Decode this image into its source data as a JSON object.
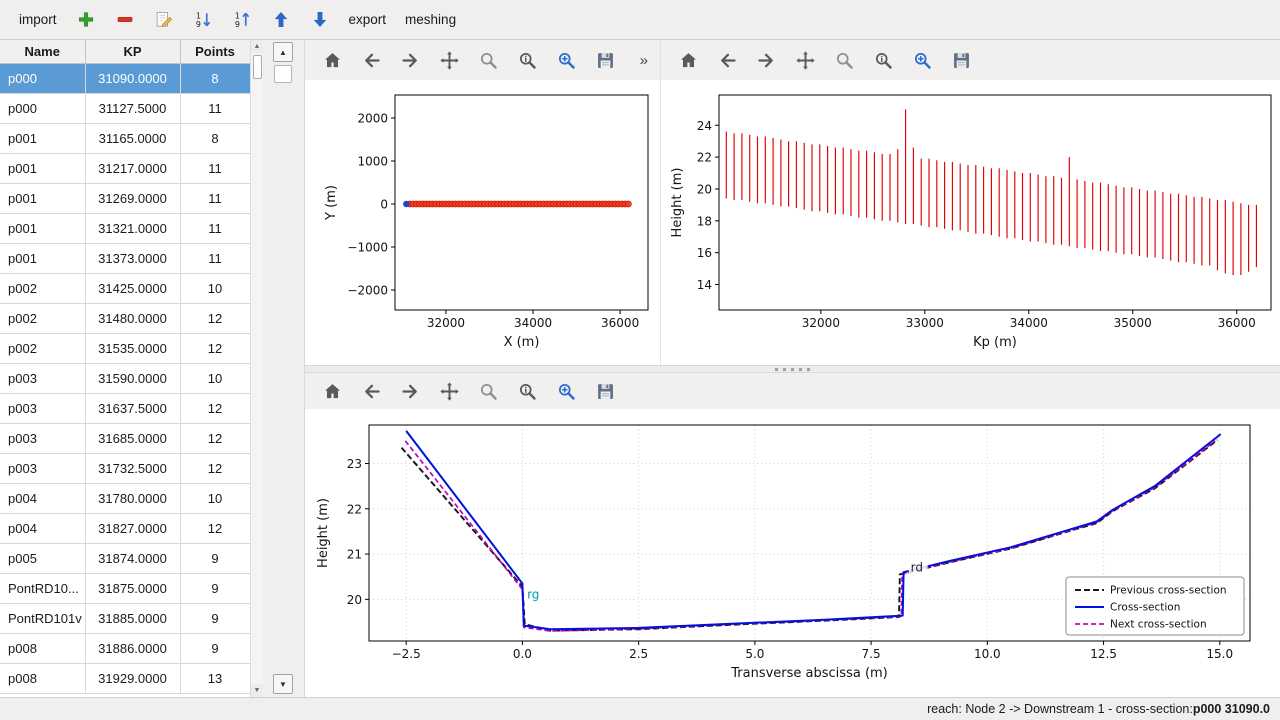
{
  "app_toolbar": {
    "import_label": "import",
    "export_label": "export",
    "meshing_label": "meshing",
    "icons": [
      "add",
      "remove",
      "edit",
      "sort-descending",
      "sort-ascending",
      "move-up",
      "move-down"
    ]
  },
  "plot_toolbar": {
    "icons": [
      "home",
      "back",
      "forward",
      "pan",
      "zoom",
      "zoom-info",
      "zoom-in",
      "save"
    ],
    "overflow_label": "»"
  },
  "table": {
    "columns": [
      "Name",
      "KP",
      "Points"
    ],
    "selected_index": 0,
    "selected_color": "#5b9bd5",
    "rows": [
      [
        "p000",
        "31090.0000",
        "8"
      ],
      [
        "p000",
        "31127.5000",
        "11"
      ],
      [
        "p001",
        "31165.0000",
        "8"
      ],
      [
        "p001",
        "31217.0000",
        "11"
      ],
      [
        "p001",
        "31269.0000",
        "11"
      ],
      [
        "p001",
        "31321.0000",
        "11"
      ],
      [
        "p001",
        "31373.0000",
        "11"
      ],
      [
        "p002",
        "31425.0000",
        "10"
      ],
      [
        "p002",
        "31480.0000",
        "12"
      ],
      [
        "p002",
        "31535.0000",
        "12"
      ],
      [
        "p003",
        "31590.0000",
        "10"
      ],
      [
        "p003",
        "31637.5000",
        "12"
      ],
      [
        "p003",
        "31685.0000",
        "12"
      ],
      [
        "p003",
        "31732.5000",
        "12"
      ],
      [
        "p004",
        "31780.0000",
        "10"
      ],
      [
        "p004",
        "31827.0000",
        "12"
      ],
      [
        "p005",
        "31874.0000",
        "9"
      ],
      [
        "PontRD10...",
        "31875.0000",
        "9"
      ],
      [
        "PontRD101v",
        "31885.0000",
        "9"
      ],
      [
        "p008",
        "31886.0000",
        "9"
      ],
      [
        "p008",
        "31929.0000",
        "13"
      ]
    ]
  },
  "status_bar": {
    "text": "reach: Node 2 -> Downstream 1 - cross-section: ",
    "bold_text": "p000 31090.0"
  },
  "chart_data": [
    {
      "type": "scatter",
      "title": "",
      "xlabel": "X (m)",
      "ylabel": "Y (m)",
      "xlim": [
        30830,
        36640
      ],
      "ylim": [
        -2465,
        2535
      ],
      "xticks": [
        32000,
        34000,
        36000
      ],
      "xtick_labels": [
        "32000",
        "34000",
        "36000"
      ],
      "yticks": [
        2000,
        1000,
        0,
        -1000,
        -2000
      ],
      "ytick_labels": [
        "2000",
        "1000",
        "0",
        "−1000",
        "−2000"
      ],
      "marker_color": "#f03a20",
      "marker_edge": "#c21807",
      "points_y": 0,
      "x_from": "sections",
      "selected": {
        "x": 31090,
        "y": 0,
        "color": "#2244cc"
      }
    },
    {
      "type": "segments",
      "title": "",
      "xlabel": "Kp (m)",
      "ylabel": "Height (m)",
      "xlim": [
        31020,
        36330
      ],
      "ylim": [
        12.4,
        25.9
      ],
      "xticks": [
        32000,
        33000,
        34000,
        35000,
        36000
      ],
      "xtick_labels": [
        "32000",
        "33000",
        "34000",
        "35000",
        "36000"
      ],
      "yticks": [
        14,
        16,
        18,
        20,
        22,
        24
      ],
      "ytick_labels": [
        "14",
        "16",
        "18",
        "20",
        "22",
        "24"
      ],
      "color": "#e00000",
      "sections": [
        [
          31090,
          19.4,
          23.6
        ],
        [
          31165,
          19.3,
          23.5
        ],
        [
          31240,
          19.3,
          23.5
        ],
        [
          31315,
          19.2,
          23.4
        ],
        [
          31390,
          19.1,
          23.3
        ],
        [
          31465,
          19.1,
          23.3
        ],
        [
          31540,
          19.0,
          23.2
        ],
        [
          31615,
          18.9,
          23.1
        ],
        [
          31690,
          18.9,
          23.0
        ],
        [
          31765,
          18.8,
          23.0
        ],
        [
          31840,
          18.7,
          22.9
        ],
        [
          31915,
          18.6,
          22.8
        ],
        [
          31990,
          18.6,
          22.8
        ],
        [
          32065,
          18.5,
          22.7
        ],
        [
          32140,
          18.4,
          22.6
        ],
        [
          32215,
          18.4,
          22.6
        ],
        [
          32290,
          18.3,
          22.5
        ],
        [
          32365,
          18.2,
          22.4
        ],
        [
          32440,
          18.2,
          22.4
        ],
        [
          32515,
          18.1,
          22.3
        ],
        [
          32590,
          18.0,
          22.2
        ],
        [
          32665,
          18.0,
          22.2
        ],
        [
          32740,
          17.9,
          22.5
        ],
        [
          32815,
          17.8,
          25.0
        ],
        [
          32890,
          17.8,
          22.6
        ],
        [
          32965,
          17.7,
          21.9
        ],
        [
          33040,
          17.6,
          21.9
        ],
        [
          33115,
          17.6,
          21.8
        ],
        [
          33190,
          17.5,
          21.7
        ],
        [
          33265,
          17.4,
          21.7
        ],
        [
          33340,
          17.4,
          21.6
        ],
        [
          33415,
          17.3,
          21.5
        ],
        [
          33490,
          17.2,
          21.5
        ],
        [
          33565,
          17.2,
          21.4
        ],
        [
          33640,
          17.1,
          21.3
        ],
        [
          33715,
          17.0,
          21.3
        ],
        [
          33790,
          16.9,
          21.2
        ],
        [
          33865,
          16.9,
          21.1
        ],
        [
          33940,
          16.8,
          21.0
        ],
        [
          34015,
          16.7,
          21.0
        ],
        [
          34090,
          16.7,
          20.9
        ],
        [
          34165,
          16.6,
          20.8
        ],
        [
          34240,
          16.5,
          20.8
        ],
        [
          34315,
          16.5,
          20.7
        ],
        [
          34390,
          16.4,
          22.0
        ],
        [
          34465,
          16.3,
          20.6
        ],
        [
          34540,
          16.3,
          20.5
        ],
        [
          34615,
          16.2,
          20.4
        ],
        [
          34690,
          16.1,
          20.4
        ],
        [
          34765,
          16.1,
          20.3
        ],
        [
          34840,
          16.0,
          20.2
        ],
        [
          34915,
          15.9,
          20.1
        ],
        [
          34990,
          15.9,
          20.1
        ],
        [
          35065,
          15.8,
          20.0
        ],
        [
          35140,
          15.7,
          19.9
        ],
        [
          35215,
          15.7,
          19.9
        ],
        [
          35290,
          15.6,
          19.8
        ],
        [
          35365,
          15.5,
          19.7
        ],
        [
          35440,
          15.4,
          19.7
        ],
        [
          35515,
          15.4,
          19.6
        ],
        [
          35590,
          15.3,
          19.5
        ],
        [
          35665,
          15.2,
          19.5
        ],
        [
          35740,
          15.2,
          19.4
        ],
        [
          35815,
          14.9,
          19.3
        ],
        [
          35890,
          14.7,
          19.3
        ],
        [
          35965,
          14.6,
          19.2
        ],
        [
          36040,
          14.6,
          19.1
        ],
        [
          36115,
          14.8,
          19.0
        ],
        [
          36190,
          15.1,
          19.0
        ]
      ]
    },
    {
      "type": "line",
      "title": "",
      "xlabel": "Transverse abscissa (m)",
      "ylabel": "Height (m)",
      "xlim": [
        -3.3,
        15.65
      ],
      "ylim": [
        19.08,
        23.85
      ],
      "xticks": [
        -2.5,
        0,
        2.5,
        5,
        7.5,
        10,
        12.5,
        15
      ],
      "xtick_labels": [
        "−2.5",
        "0.0",
        "2.5",
        "5.0",
        "7.5",
        "10.0",
        "12.5",
        "15.0"
      ],
      "yticks": [
        20,
        21,
        22,
        23
      ],
      "ytick_labels": [
        "20",
        "21",
        "22",
        "23"
      ],
      "grid": true,
      "legend_position": "lower right",
      "series": [
        {
          "name": "Previous cross-section",
          "color": "#1a1a1a",
          "dash": "6,3",
          "width": 2,
          "points": [
            [
              -2.6,
              23.35
            ],
            [
              0.0,
              20.28
            ],
            [
              0.05,
              19.45
            ],
            [
              0.6,
              19.31
            ],
            [
              2.5,
              19.34
            ],
            [
              4.5,
              19.44
            ],
            [
              6.5,
              19.53
            ],
            [
              8.1,
              19.61
            ],
            [
              8.12,
              20.55
            ],
            [
              9.2,
              20.82
            ],
            [
              10.5,
              21.12
            ],
            [
              11.8,
              21.52
            ],
            [
              12.35,
              21.68
            ],
            [
              12.7,
              21.95
            ],
            [
              13.6,
              22.45
            ],
            [
              14.95,
              23.52
            ]
          ]
        },
        {
          "name": "Cross-section",
          "color": "#0010dd",
          "dash": "",
          "width": 2,
          "points": [
            [
              -2.5,
              23.72
            ],
            [
              0.0,
              20.35
            ],
            [
              0.03,
              19.42
            ],
            [
              0.6,
              19.34
            ],
            [
              2.5,
              19.37
            ],
            [
              4.5,
              19.46
            ],
            [
              6.5,
              19.55
            ],
            [
              8.18,
              19.64
            ],
            [
              8.2,
              20.6
            ],
            [
              9.2,
              20.85
            ],
            [
              10.5,
              21.15
            ],
            [
              11.8,
              21.55
            ],
            [
              12.35,
              21.72
            ],
            [
              12.7,
              21.98
            ],
            [
              13.6,
              22.5
            ],
            [
              15.02,
              23.65
            ]
          ]
        },
        {
          "name": "Next cross-section",
          "color": "#c400c4",
          "dash": "5,3",
          "width": 1.7,
          "points": [
            [
              -2.52,
              23.5
            ],
            [
              0.0,
              20.22
            ],
            [
              0.03,
              19.38
            ],
            [
              0.6,
              19.3
            ],
            [
              2.5,
              19.35
            ],
            [
              4.5,
              19.45
            ],
            [
              6.5,
              19.54
            ],
            [
              8.15,
              19.62
            ],
            [
              8.17,
              20.57
            ],
            [
              9.2,
              20.83
            ],
            [
              10.5,
              21.13
            ],
            [
              11.8,
              21.53
            ],
            [
              12.35,
              21.7
            ],
            [
              12.7,
              21.96
            ],
            [
              13.6,
              22.47
            ],
            [
              14.9,
              23.5
            ]
          ]
        }
      ],
      "annotations": [
        {
          "text": "rg",
          "x": 0.1,
          "y": 20.02,
          "color": "#00a2a8"
        },
        {
          "text": "rd",
          "x": 8.35,
          "y": 20.62,
          "color": "#262626"
        }
      ]
    }
  ]
}
